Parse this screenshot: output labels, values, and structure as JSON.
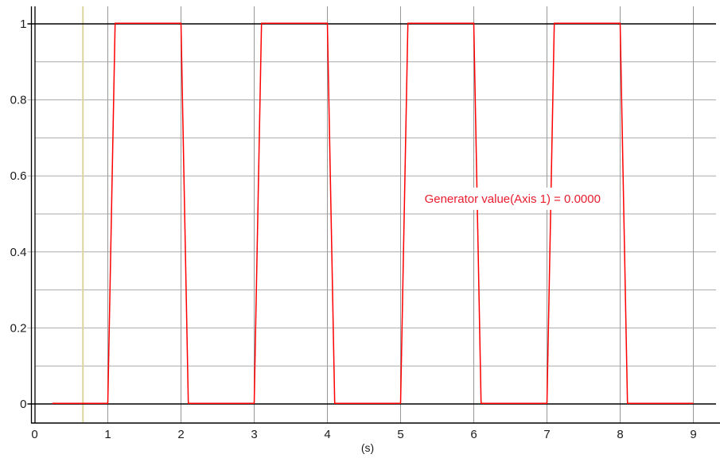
{
  "window": {
    "background": "#ffffff"
  },
  "chart_data": {
    "type": "line",
    "title": "",
    "xlabel": "(s)",
    "ylabel": "",
    "xlim": [
      -0.05,
      9.31
    ],
    "ylim": [
      -0.05,
      1.046
    ],
    "grid": "on",
    "legend": "none",
    "x_ticks": [
      0,
      1,
      2,
      3,
      4,
      5,
      6,
      7,
      8,
      9
    ],
    "x_tick_labels": [
      "0",
      "1",
      "2",
      "3",
      "4",
      "5",
      "6",
      "7",
      "8",
      "9"
    ],
    "y_ticks": [
      0,
      0.2,
      0.4,
      0.6,
      0.8,
      1
    ],
    "y_tick_labels": [
      "0",
      "0.2",
      "0.4",
      "0.6",
      "0.8",
      "1"
    ],
    "y_minor_gridlines": [
      0.1,
      0.2,
      0.3,
      0.4,
      0.5,
      0.6,
      0.7,
      0.8,
      0.9
    ],
    "series": [
      {
        "name": "Generator value",
        "color": "#ff0000",
        "x": [
          0.24,
          1.0,
          1.1,
          2.0,
          2.1,
          3.0,
          3.1,
          4.0,
          4.1,
          5.0,
          5.1,
          6.0,
          6.1,
          7.0,
          7.1,
          8.0,
          8.1,
          9.0
        ],
        "y": [
          0,
          0,
          1,
          1,
          0,
          0,
          1,
          1,
          0,
          0,
          1,
          1,
          0,
          0,
          1,
          1,
          0,
          0
        ]
      }
    ],
    "time_cursor": {
      "x": 0.66,
      "color": "#dbd79b"
    },
    "annotation": {
      "text": "Generator value(Axis 1) = 0.0000",
      "x": 6.53,
      "y": 0.54,
      "text_color": "#e81c2e",
      "background": "#ffffff"
    },
    "colors": {
      "axis": "#000000",
      "grid_vertical": "#989898",
      "grid_horizontal": "#aaaaaa",
      "tick_text": "#1b1b1b"
    }
  }
}
